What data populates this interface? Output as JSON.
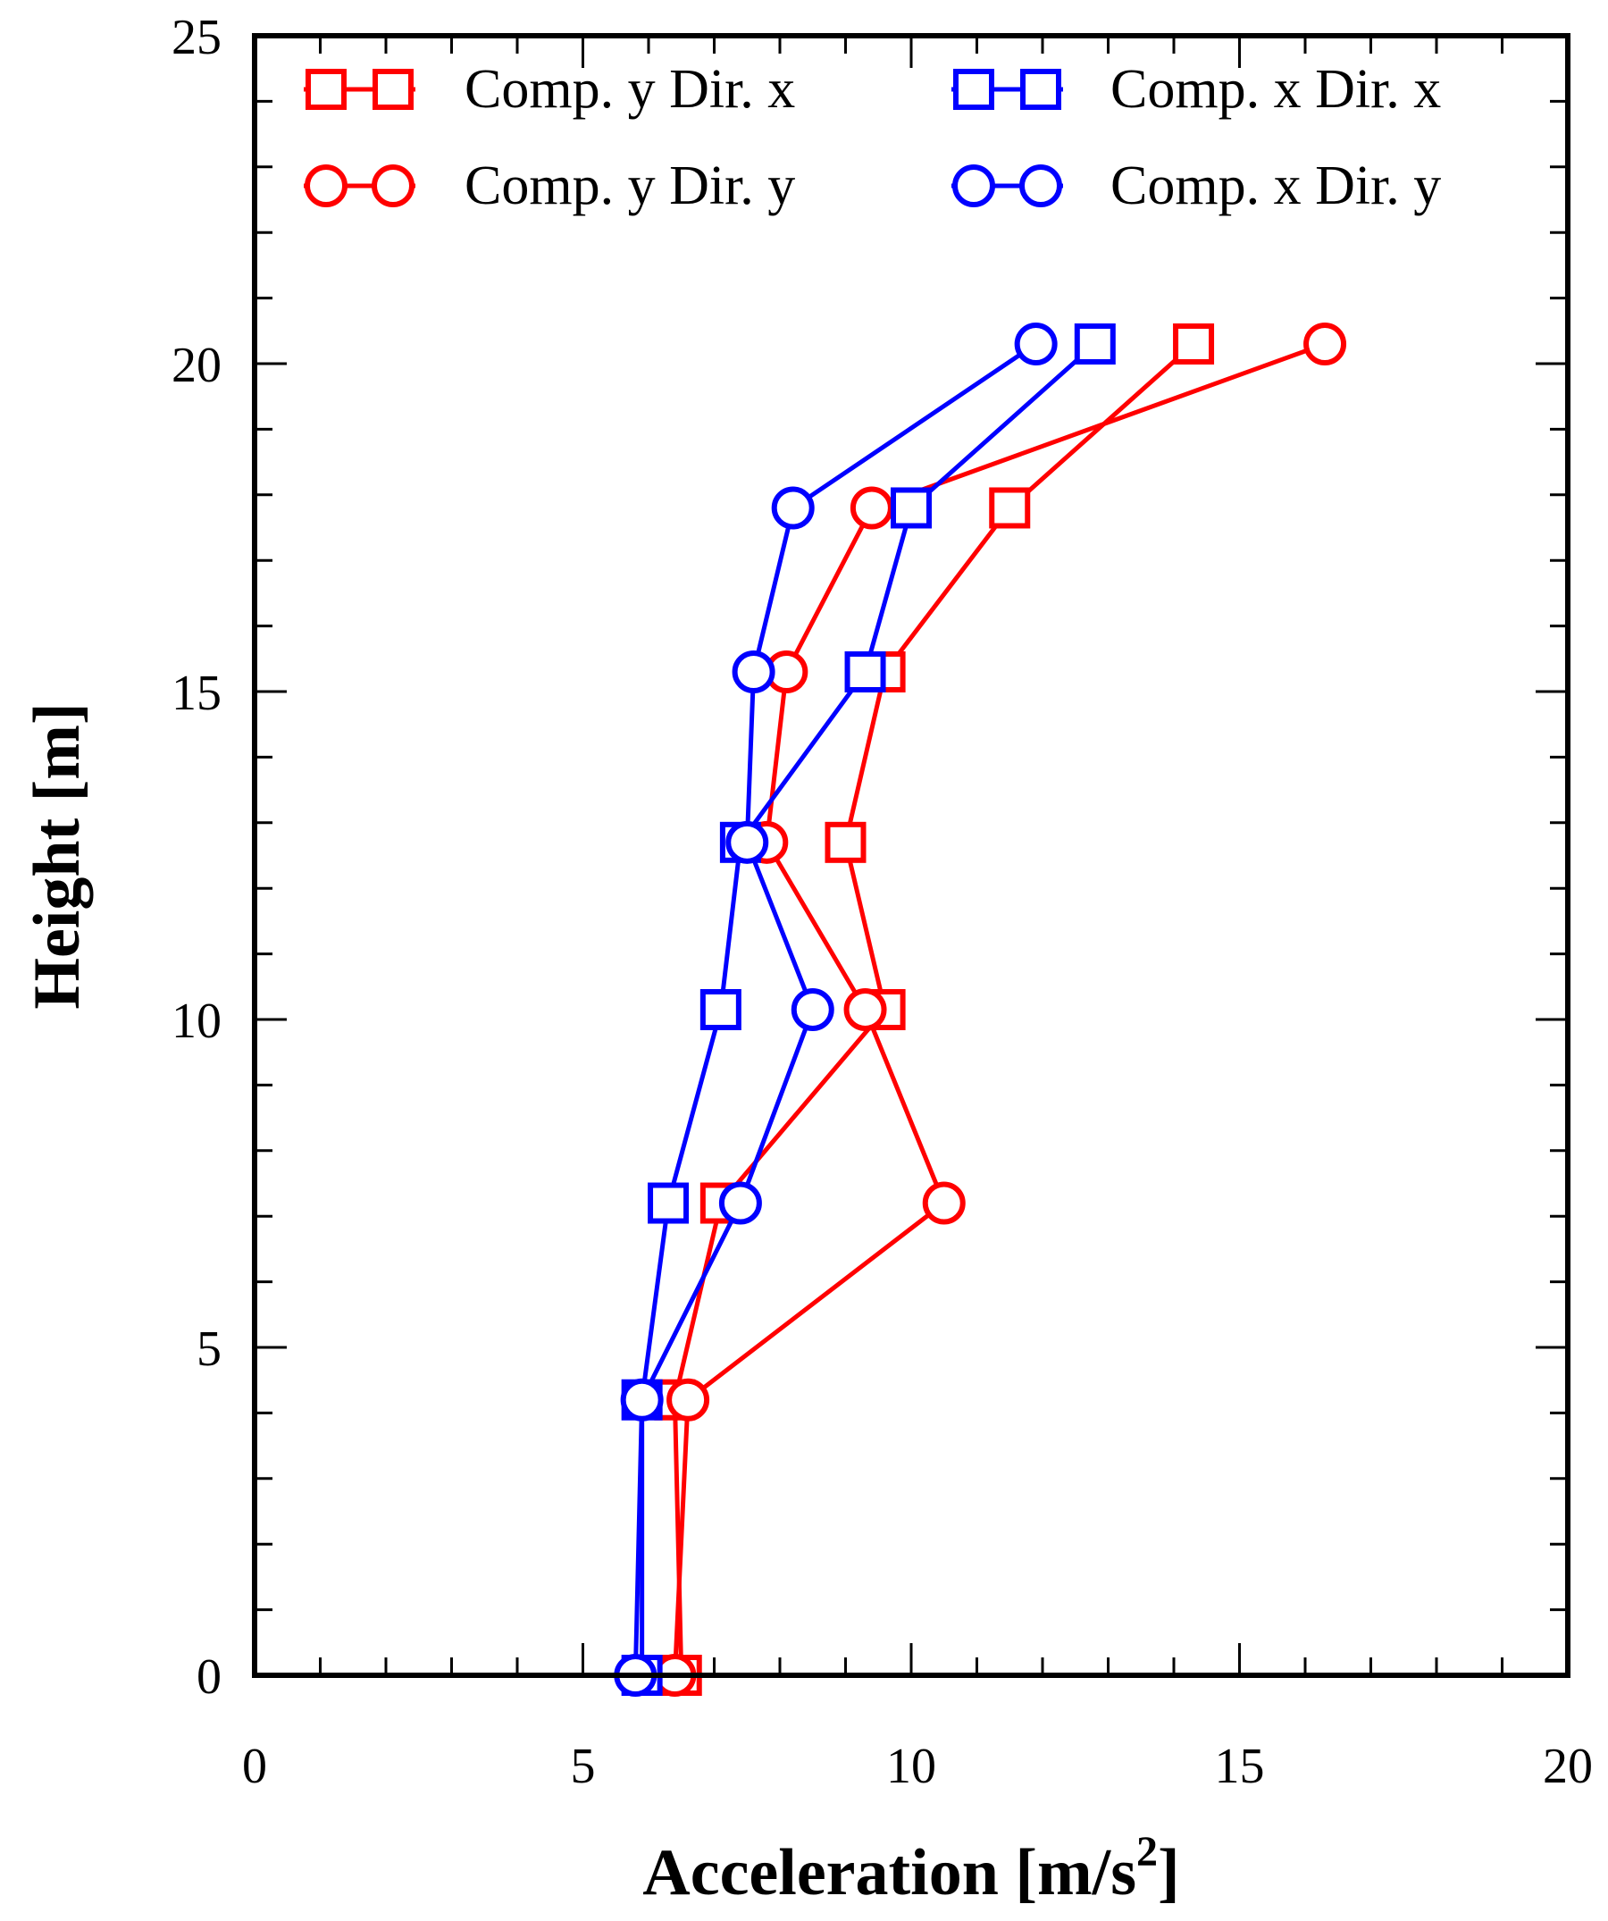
{
  "chart_data": {
    "type": "line",
    "title": "",
    "xlabel": "Acceleration [m/s",
    "xlabel_superscript": "2",
    "xlabel_close": "]",
    "ylabel": "Height [m]",
    "xlim": [
      0,
      20
    ],
    "ylim": [
      0,
      25
    ],
    "x_ticks": [
      "0",
      "5",
      "10",
      "15",
      "20"
    ],
    "y_ticks": [
      "0",
      "5",
      "10",
      "15",
      "20",
      "25"
    ],
    "grid": false,
    "legend_position": "top",
    "series": [
      {
        "name": "Comp. y Dir. x",
        "color": "#ff0000",
        "marker": "square",
        "points": [
          [
            6.5,
            0
          ],
          [
            6.4,
            4.2
          ],
          [
            7.1,
            7.2
          ],
          [
            9.6,
            10.15
          ],
          [
            9.0,
            12.7
          ],
          [
            9.6,
            15.3
          ],
          [
            11.5,
            17.8
          ],
          [
            14.3,
            20.3
          ]
        ]
      },
      {
        "name": "Comp. y Dir. y",
        "color": "#ff0000",
        "marker": "circle",
        "points": [
          [
            6.4,
            0
          ],
          [
            6.6,
            4.2
          ],
          [
            10.5,
            7.2
          ],
          [
            9.3,
            10.15
          ],
          [
            7.8,
            12.7
          ],
          [
            8.1,
            15.3
          ],
          [
            9.4,
            17.8
          ],
          [
            16.3,
            20.3
          ]
        ]
      },
      {
        "name": "Comp. x Dir. x",
        "color": "#0000ff",
        "marker": "square",
        "points": [
          [
            5.9,
            0
          ],
          [
            5.9,
            4.2
          ],
          [
            6.3,
            7.2
          ],
          [
            7.1,
            10.15
          ],
          [
            7.4,
            12.7
          ],
          [
            9.3,
            15.3
          ],
          [
            10.0,
            17.8
          ],
          [
            12.8,
            20.3
          ]
        ]
      },
      {
        "name": "Comp. x Dir. y",
        "color": "#0000ff",
        "marker": "circle",
        "points": [
          [
            5.8,
            0
          ],
          [
            5.9,
            4.2
          ],
          [
            7.4,
            7.2
          ],
          [
            8.5,
            10.15
          ],
          [
            7.5,
            12.7
          ],
          [
            7.6,
            15.3
          ],
          [
            8.2,
            17.8
          ],
          [
            11.9,
            20.3
          ]
        ]
      }
    ]
  }
}
